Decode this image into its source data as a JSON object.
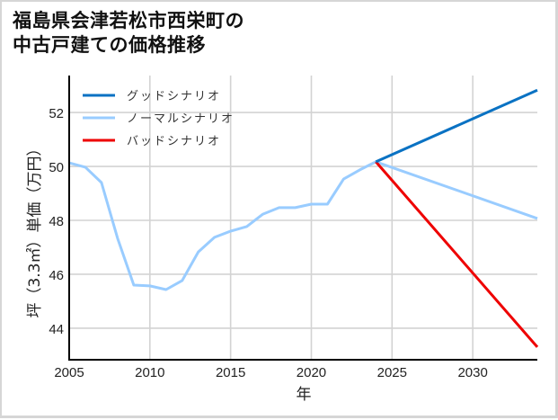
{
  "chart_data": {
    "type": "line",
    "title": "福島県会津若松市西栄町の\n中古戸建ての価格推移",
    "xlabel": "年",
    "ylabel": "坪（3.3㎡）単価（万円）",
    "xlim": [
      2005,
      2034
    ],
    "ylim": [
      42.83,
      53.37
    ],
    "xticks": [
      2005,
      2010,
      2015,
      2020,
      2025,
      2030
    ],
    "yticks": [
      44,
      46,
      48,
      50,
      52
    ],
    "grid": true,
    "legend_position": "upper left",
    "series": [
      {
        "name": "グッドシナリオ",
        "color": "#0a72c3",
        "x": [
          2024,
          2034
        ],
        "values": [
          50.17,
          52.83
        ]
      },
      {
        "name": "ノーマルシナリオ",
        "color": "#99ccff",
        "x": [
          2005,
          2006,
          2007,
          2008,
          2009,
          2010,
          2011,
          2012,
          2013,
          2014,
          2015,
          2016,
          2017,
          2018,
          2019,
          2020,
          2021,
          2022,
          2023,
          2024,
          2034
        ],
        "values": [
          50.13,
          49.97,
          49.4,
          47.33,
          45.6,
          45.57,
          45.43,
          45.77,
          46.83,
          47.37,
          47.6,
          47.77,
          48.23,
          48.47,
          48.47,
          48.6,
          48.6,
          49.53,
          49.87,
          50.17,
          48.07
        ]
      },
      {
        "name": "バッドシナリオ",
        "color": "#ee0000",
        "x": [
          2024,
          2034
        ],
        "values": [
          50.17,
          43.3
        ]
      }
    ]
  }
}
